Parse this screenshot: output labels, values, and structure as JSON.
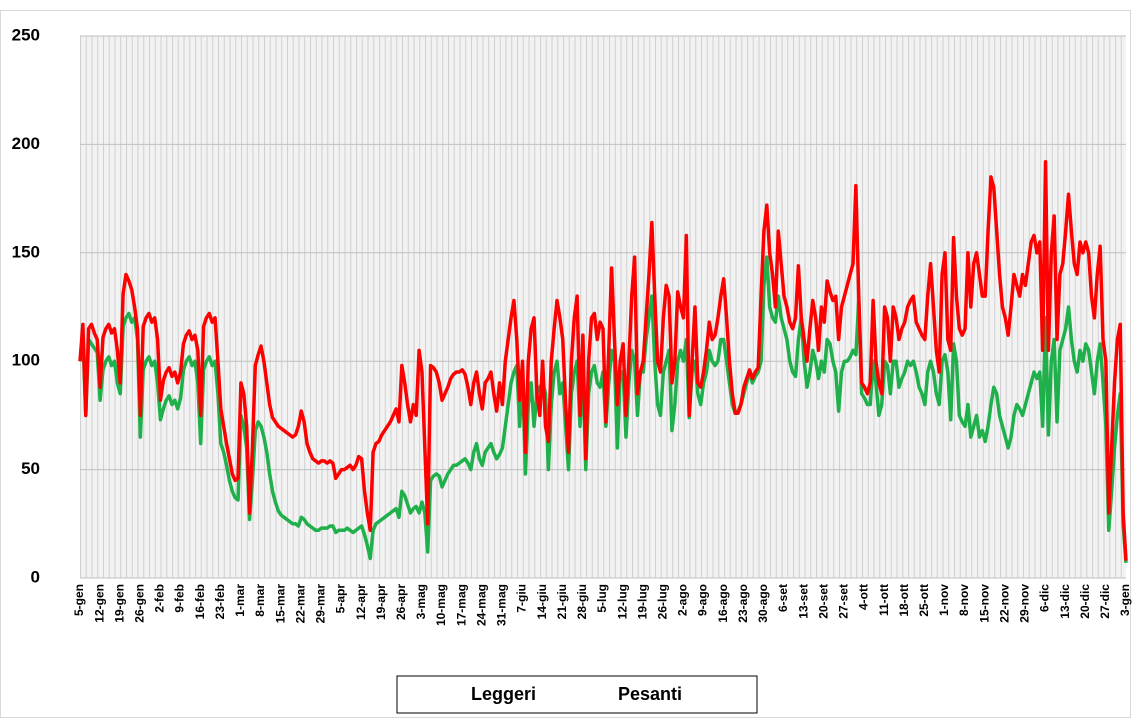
{
  "chart_data": {
    "type": "line",
    "categories": [
      "5-gen",
      null,
      null,
      null,
      null,
      null,
      null,
      "12-gen",
      null,
      null,
      null,
      null,
      null,
      null,
      "19-gen",
      null,
      null,
      null,
      null,
      null,
      null,
      "26-gen",
      null,
      null,
      null,
      null,
      null,
      null,
      "2-feb",
      null,
      null,
      null,
      null,
      null,
      null,
      "9-feb",
      null,
      null,
      null,
      null,
      null,
      null,
      "16-feb",
      null,
      null,
      null,
      null,
      null,
      null,
      "23-feb",
      null,
      null,
      null,
      null,
      null,
      null,
      "1-mar",
      null,
      null,
      null,
      null,
      null,
      null,
      "8-mar",
      null,
      null,
      null,
      null,
      null,
      null,
      "15-mar",
      null,
      null,
      null,
      null,
      null,
      null,
      "22-mar",
      null,
      null,
      null,
      null,
      null,
      null,
      "29-mar",
      null,
      null,
      null,
      null,
      null,
      null,
      "5-apr",
      null,
      null,
      null,
      null,
      null,
      null,
      "12-apr",
      null,
      null,
      null,
      null,
      null,
      null,
      "19-apr",
      null,
      null,
      null,
      null,
      null,
      null,
      "26-apr",
      null,
      null,
      null,
      null,
      null,
      null,
      "3-mag",
      null,
      null,
      null,
      null,
      null,
      null,
      "10-mag",
      null,
      null,
      null,
      null,
      null,
      null,
      "17-mag",
      null,
      null,
      null,
      null,
      null,
      null,
      "24-mag",
      null,
      null,
      null,
      null,
      null,
      null,
      "31-mag",
      null,
      null,
      null,
      null,
      null,
      null,
      "7-giu",
      null,
      null,
      null,
      null,
      null,
      null,
      "14-giu",
      null,
      null,
      null,
      null,
      null,
      null,
      "21-giu",
      null,
      null,
      null,
      null,
      null,
      null,
      "28-giu",
      null,
      null,
      null,
      null,
      null,
      null,
      "5-lug",
      null,
      null,
      null,
      null,
      null,
      null,
      "12-lug",
      null,
      null,
      null,
      null,
      null,
      null,
      "19-lug",
      null,
      null,
      null,
      null,
      null,
      null,
      "26-lug",
      null,
      null,
      null,
      null,
      null,
      null,
      "2-ago",
      null,
      null,
      null,
      null,
      null,
      null,
      "9-ago",
      null,
      null,
      null,
      null,
      null,
      null,
      "16-ago",
      null,
      null,
      null,
      null,
      null,
      null,
      "23-ago",
      null,
      null,
      null,
      null,
      null,
      null,
      "30-ago",
      null,
      null,
      null,
      null,
      null,
      null,
      "6-set",
      null,
      null,
      null,
      null,
      null,
      null,
      "13-set",
      null,
      null,
      null,
      null,
      null,
      null,
      "20-set",
      null,
      null,
      null,
      null,
      null,
      null,
      "27-set",
      null,
      null,
      null,
      null,
      null,
      null,
      "4-ott",
      null,
      null,
      null,
      null,
      null,
      null,
      "11-ott",
      null,
      null,
      null,
      null,
      null,
      null,
      "18-ott",
      null,
      null,
      null,
      null,
      null,
      null,
      "25-ott",
      null,
      null,
      null,
      null,
      null,
      null,
      "1-nov",
      null,
      null,
      null,
      null,
      null,
      null,
      "8-nov",
      null,
      null,
      null,
      null,
      null,
      null,
      "15-nov",
      null,
      null,
      null,
      null,
      null,
      null,
      "22-nov",
      null,
      null,
      null,
      null,
      null,
      null,
      "29-nov",
      null,
      null,
      null,
      null,
      null,
      null,
      "6-dic",
      null,
      null,
      null,
      null,
      null,
      null,
      "13-dic",
      null,
      null,
      null,
      null,
      null,
      null,
      "20-dic",
      null,
      null,
      null,
      null,
      null,
      null,
      "27-dic",
      null,
      null,
      null,
      null,
      null,
      null,
      "3-gen"
    ],
    "series": [
      {
        "name": "Leggeri",
        "color": "#1faf4b",
        "values": [
          100,
          112,
          75,
          110,
          108,
          106,
          104,
          82,
          96,
          100,
          102,
          98,
          100,
          90,
          85,
          116,
          120,
          122,
          118,
          120,
          110,
          65,
          96,
          100,
          102,
          98,
          100,
          90,
          73,
          78,
          82,
          84,
          80,
          82,
          78,
          83,
          96,
          100,
          102,
          98,
          100,
          90,
          62,
          96,
          100,
          102,
          98,
          100,
          85,
          62,
          58,
          52,
          45,
          40,
          37,
          36,
          75,
          70,
          60,
          27,
          45,
          68,
          72,
          70,
          65,
          58,
          48,
          40,
          35,
          31,
          29,
          28,
          27,
          26,
          25,
          25,
          24,
          28,
          27,
          25,
          24,
          23,
          22,
          22,
          23,
          23,
          23,
          24,
          24,
          21,
          22,
          22,
          22,
          23,
          22,
          21,
          22,
          23,
          24,
          20,
          15,
          9,
          22,
          25,
          26,
          27,
          28,
          29,
          30,
          31,
          32,
          28,
          40,
          38,
          34,
          30,
          32,
          33,
          30,
          35,
          30,
          12,
          45,
          47,
          48,
          47,
          42,
          45,
          48,
          50,
          52,
          52,
          53,
          54,
          55,
          53,
          50,
          58,
          62,
          55,
          52,
          58,
          60,
          62,
          58,
          55,
          57,
          60,
          70,
          80,
          90,
          95,
          98,
          70,
          95,
          48,
          80,
          90,
          70,
          85,
          88,
          90,
          85,
          50,
          80,
          95,
          100,
          85,
          90,
          70,
          50,
          85,
          95,
          100,
          70,
          95,
          50,
          85,
          95,
          98,
          90,
          88,
          95,
          70,
          90,
          105,
          100,
          60,
          95,
          95,
          65,
          90,
          105,
          100,
          75,
          95,
          95,
          110,
          120,
          130,
          100,
          80,
          75,
          95,
          100,
          105,
          68,
          80,
          100,
          105,
          100,
          110,
          74,
          95,
          100,
          85,
          80,
          90,
          95,
          105,
          100,
          98,
          100,
          110,
          110,
          100,
          90,
          80,
          76,
          77,
          80,
          85,
          90,
          95,
          90,
          93,
          95,
          100,
          135,
          148,
          125,
          120,
          118,
          130,
          120,
          115,
          110,
          100,
          95,
          93,
          110,
          120,
          100,
          88,
          95,
          105,
          100,
          92,
          100,
          95,
          110,
          108,
          100,
          95,
          77,
          95,
          100,
          100,
          102,
          105,
          103,
          128,
          85,
          83,
          80,
          80,
          100,
          90,
          75,
          80,
          100,
          98,
          85,
          100,
          100,
          88,
          92,
          95,
          100,
          98,
          100,
          95,
          88,
          85,
          80,
          95,
          100,
          95,
          85,
          80,
          100,
          103,
          95,
          73,
          108,
          100,
          75,
          72,
          70,
          80,
          65,
          70,
          75,
          65,
          68,
          63,
          70,
          80,
          88,
          85,
          75,
          70,
          65,
          60,
          65,
          75,
          80,
          78,
          75,
          80,
          85,
          90,
          95,
          92,
          95,
          70,
          120,
          66,
          100,
          110,
          72,
          105,
          110,
          115,
          125,
          110,
          100,
          95,
          105,
          100,
          108,
          105,
          95,
          85,
          100,
          108,
          90,
          70,
          22,
          40,
          60,
          75,
          85,
          25,
          7
        ]
      },
      {
        "name": "Pesanti",
        "color": "#ff0000",
        "values": [
          100,
          117,
          75,
          115,
          117,
          113,
          110,
          88,
          111,
          115,
          117,
          113,
          115,
          105,
          90,
          131,
          140,
          137,
          133,
          125,
          115,
          75,
          116,
          120,
          122,
          118,
          120,
          110,
          82,
          91,
          95,
          97,
          93,
          95,
          90,
          95,
          108,
          112,
          114,
          110,
          112,
          105,
          75,
          116,
          120,
          122,
          118,
          120,
          100,
          78,
          70,
          62,
          55,
          48,
          45,
          46,
          90,
          85,
          70,
          30,
          60,
          98,
          103,
          107,
          100,
          90,
          80,
          74,
          72,
          70,
          69,
          68,
          67,
          66,
          65,
          66,
          70,
          77,
          72,
          62,
          58,
          55,
          54,
          53,
          54,
          54,
          53,
          54,
          53,
          46,
          48,
          50,
          50,
          51,
          52,
          50,
          52,
          56,
          55,
          40,
          30,
          22,
          58,
          62,
          63,
          66,
          68,
          70,
          72,
          75,
          78,
          72,
          98,
          90,
          80,
          72,
          80,
          75,
          105,
          95,
          60,
          25,
          98,
          97,
          95,
          90,
          82,
          85,
          88,
          92,
          94,
          95,
          95,
          96,
          94,
          88,
          80,
          90,
          95,
          85,
          78,
          90,
          92,
          95,
          85,
          77,
          90,
          80,
          100,
          110,
          120,
          128,
          110,
          82,
          100,
          58,
          100,
          115,
          120,
          85,
          75,
          100,
          70,
          63,
          100,
          115,
          128,
          120,
          110,
          80,
          58,
          100,
          120,
          130,
          75,
          112,
          55,
          100,
          120,
          122,
          110,
          118,
          115,
          72,
          105,
          143,
          110,
          80,
          100,
          108,
          75,
          100,
          130,
          148,
          85,
          95,
          100,
          120,
          140,
          164,
          130,
          100,
          95,
          120,
          135,
          130,
          90,
          100,
          132,
          125,
          120,
          158,
          75,
          100,
          125,
          90,
          88,
          95,
          105,
          118,
          110,
          112,
          120,
          130,
          138,
          120,
          100,
          85,
          76,
          76,
          80,
          88,
          92,
          96,
          92,
          95,
          97,
          130,
          160,
          172,
          150,
          140,
          125,
          160,
          145,
          130,
          125,
          118,
          115,
          120,
          144,
          120,
          110,
          100,
          115,
          128,
          120,
          105,
          125,
          118,
          137,
          132,
          128,
          130,
          110,
          125,
          130,
          135,
          140,
          145,
          181,
          130,
          90,
          88,
          85,
          90,
          128,
          100,
          90,
          85,
          125,
          120,
          100,
          125,
          120,
          110,
          115,
          118,
          125,
          128,
          130,
          118,
          115,
          112,
          110,
          130,
          145,
          125,
          105,
          95,
          140,
          150,
          110,
          105,
          157,
          130,
          115,
          112,
          115,
          150,
          125,
          145,
          150,
          140,
          130,
          130,
          160,
          185,
          180,
          160,
          140,
          125,
          120,
          112,
          125,
          140,
          135,
          130,
          140,
          135,
          145,
          155,
          158,
          150,
          155,
          105,
          192,
          105,
          150,
          167,
          110,
          140,
          145,
          160,
          177,
          160,
          145,
          140,
          155,
          150,
          155,
          150,
          130,
          120,
          140,
          153,
          110,
          100,
          30,
          60,
          90,
          110,
          117,
          30,
          8
        ]
      }
    ],
    "ylim": [
      0,
      250
    ],
    "yticks": [
      0,
      50,
      100,
      150,
      200,
      250
    ],
    "grid": true,
    "legend": "bottom"
  }
}
